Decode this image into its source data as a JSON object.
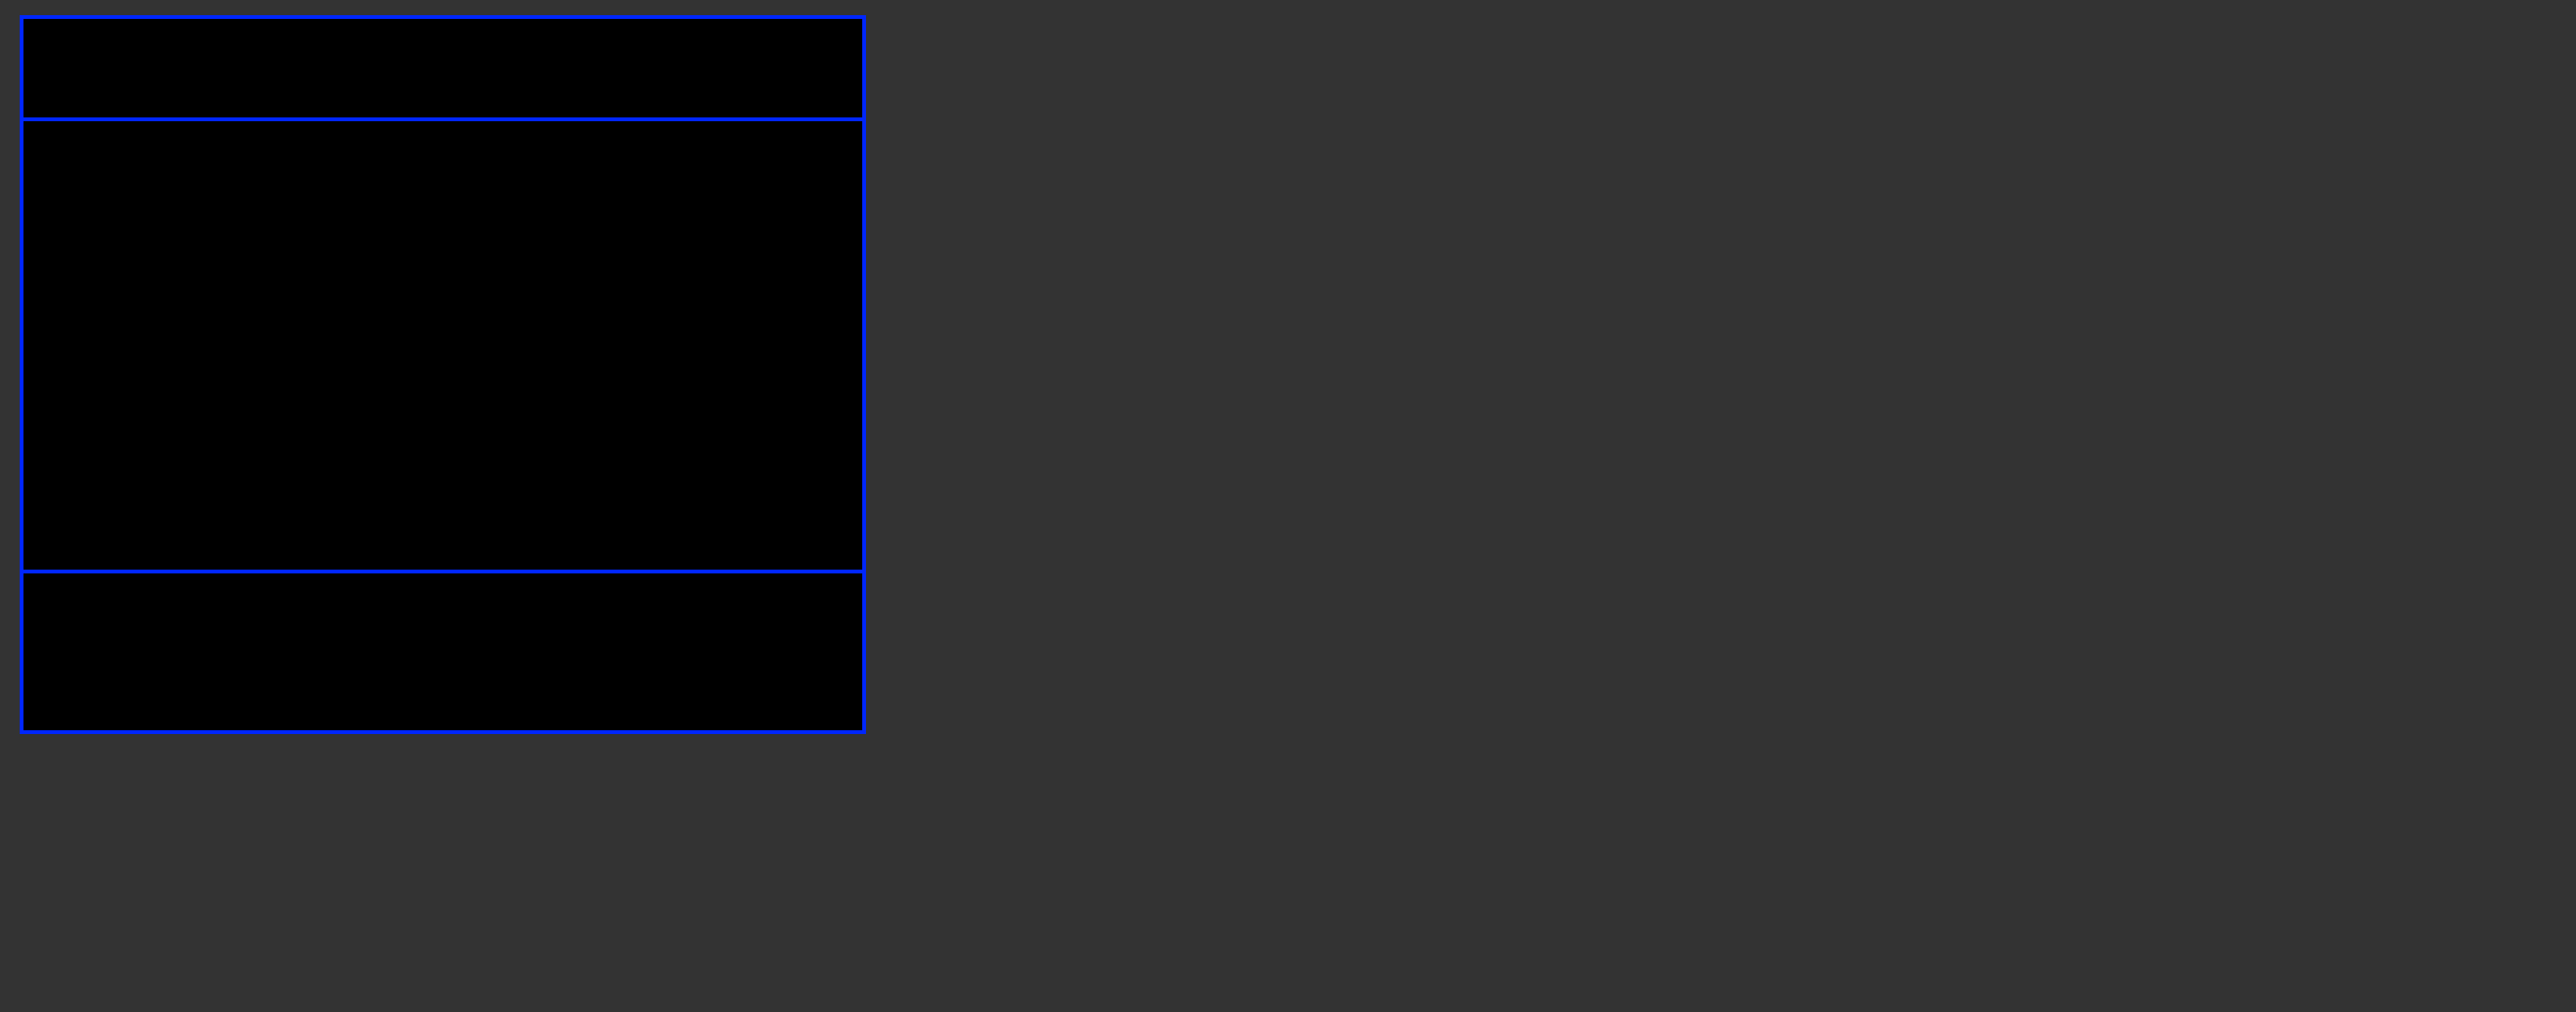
{
  "theme": {
    "background_color": "#333333",
    "panel_color": "#000000",
    "border_color": "#0026ff"
  },
  "panel": {
    "header": {},
    "body": {},
    "footer": {}
  }
}
